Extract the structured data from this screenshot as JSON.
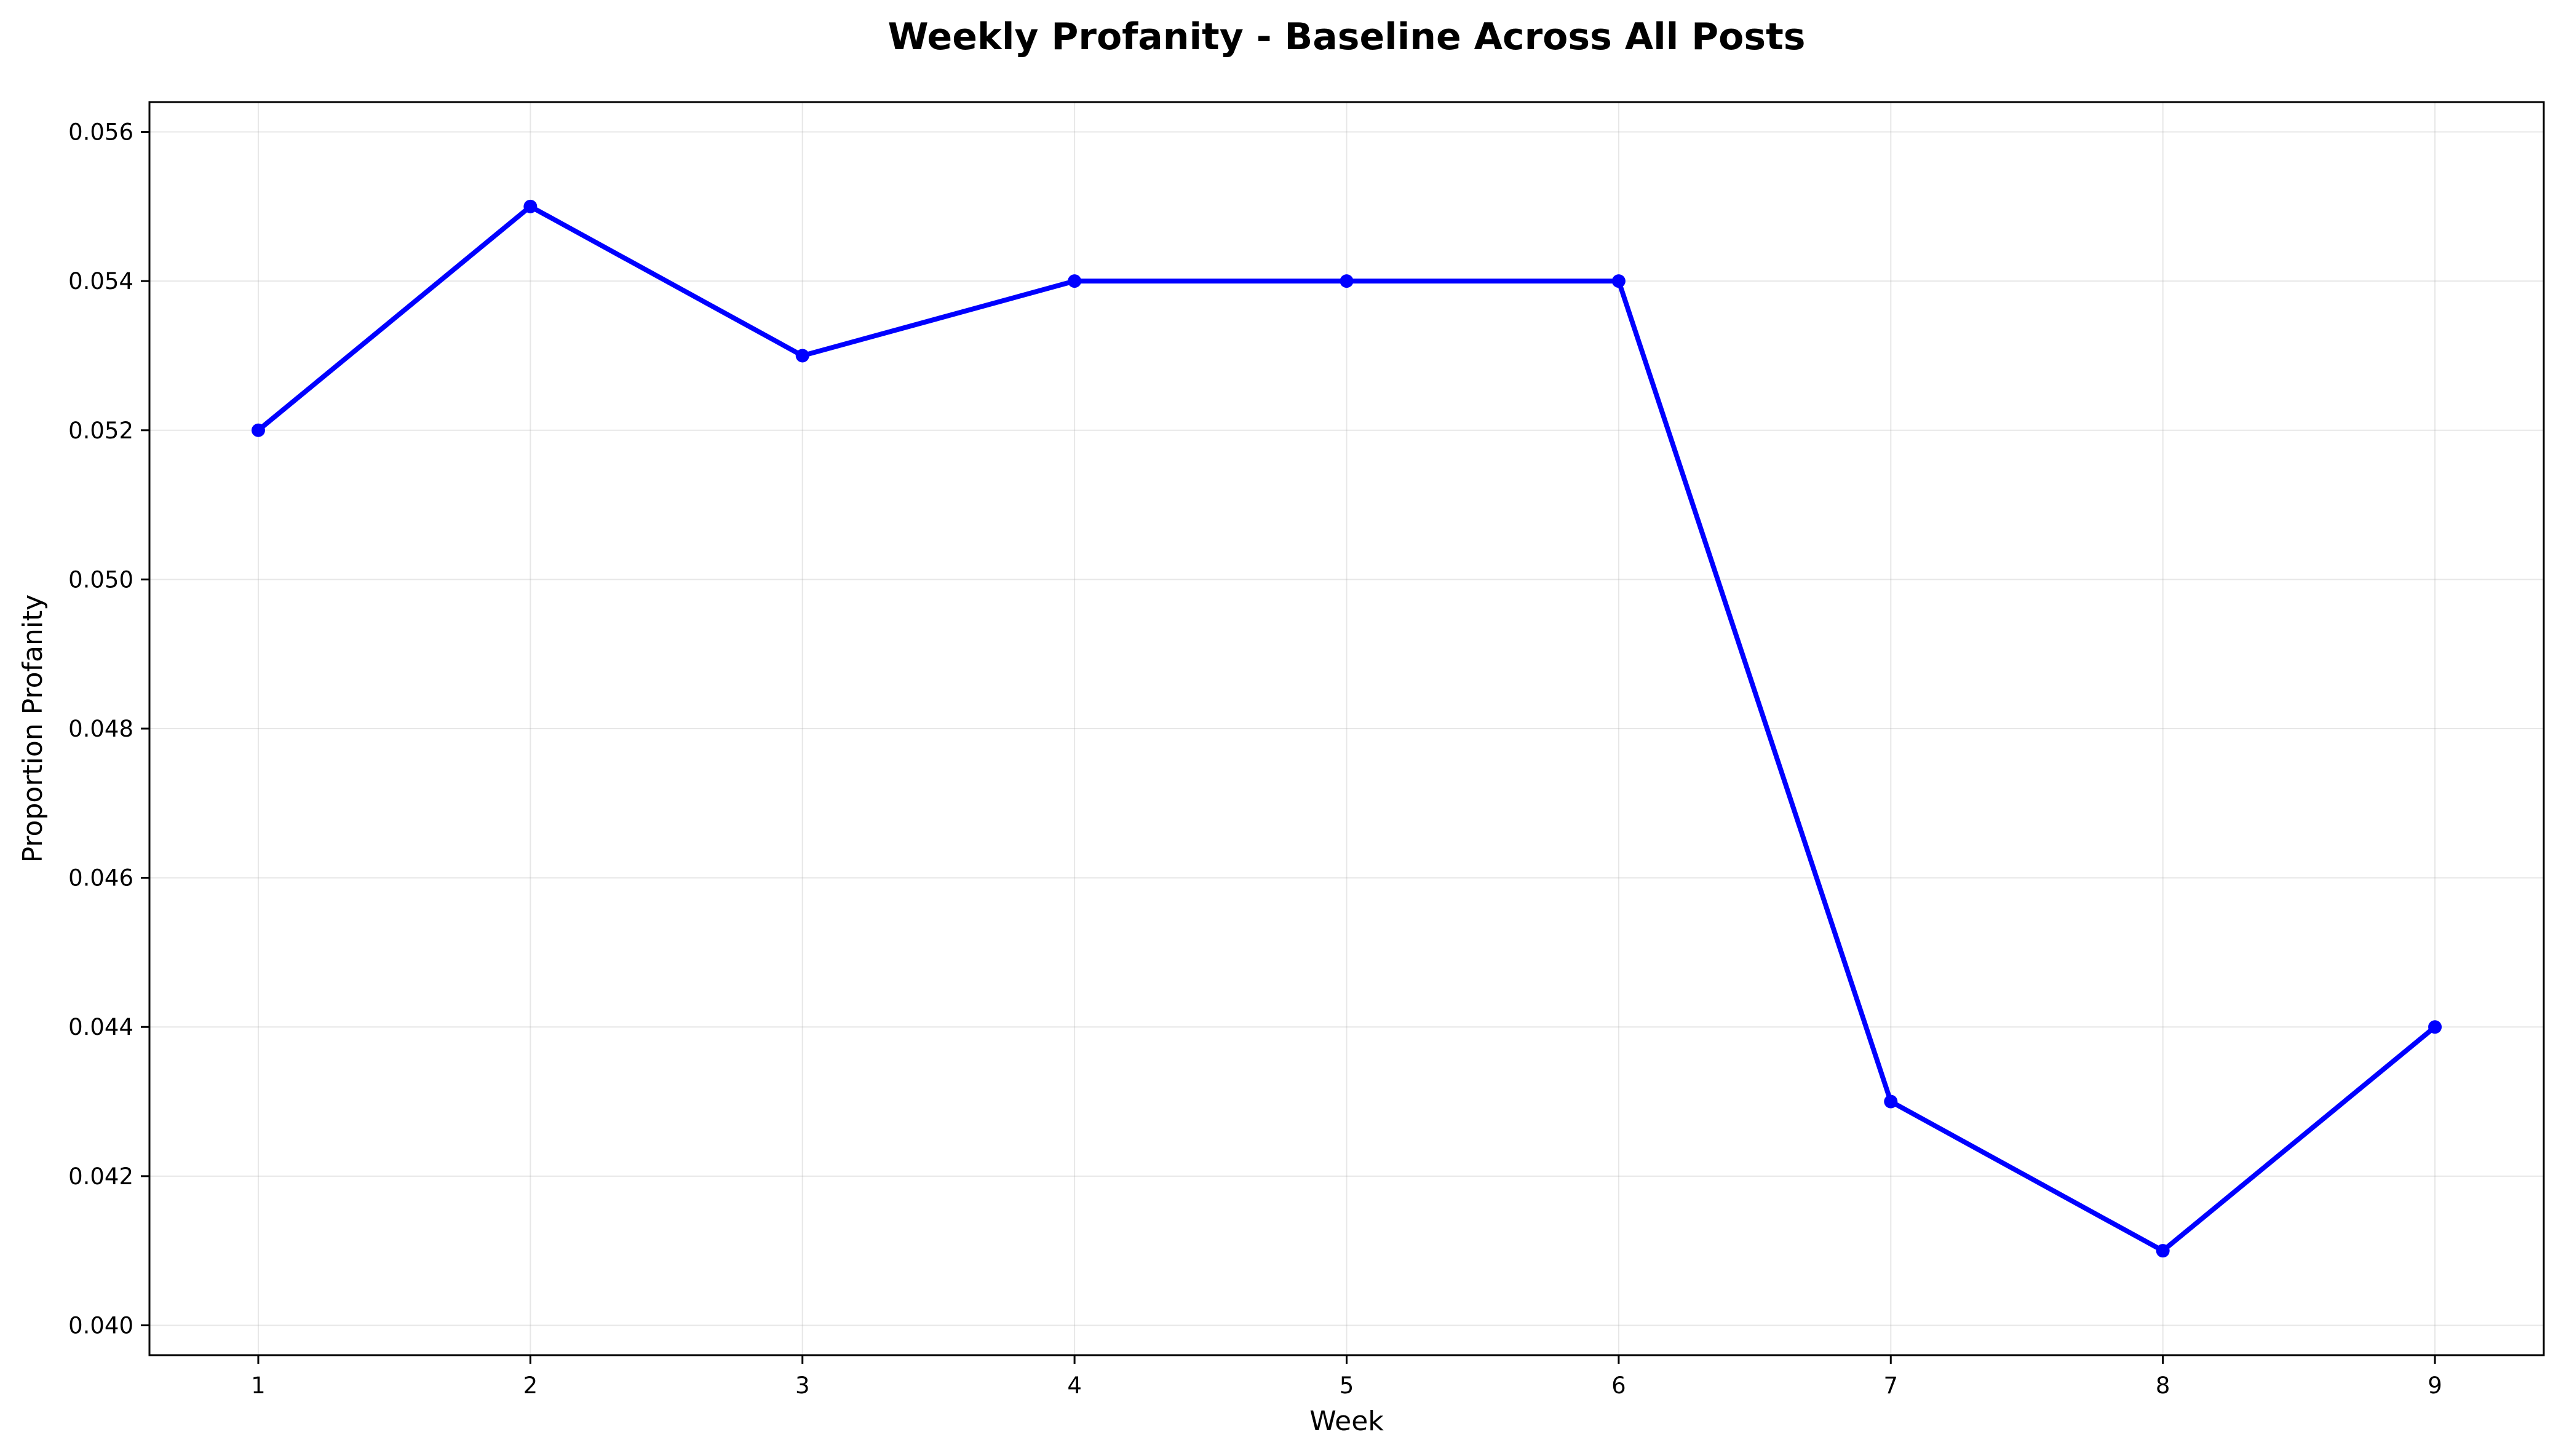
{
  "chart_data": {
    "type": "line",
    "title": "Weekly Profanity - Baseline Across All Posts",
    "xlabel": "Week",
    "ylabel": "Proportion Profanity",
    "x": [
      1,
      2,
      3,
      4,
      5,
      6,
      7,
      8,
      9
    ],
    "x_tick_labels": [
      "1",
      "2",
      "3",
      "4",
      "5",
      "6",
      "7",
      "8",
      "9"
    ],
    "y_ticks": [
      0.04,
      0.042,
      0.044,
      0.046,
      0.048,
      0.05,
      0.052,
      0.054,
      0.056
    ],
    "y_tick_labels": [
      "0.040",
      "0.042",
      "0.044",
      "0.046",
      "0.048",
      "0.050",
      "0.052",
      "0.054",
      "0.056"
    ],
    "xlim": [
      0.6,
      9.4
    ],
    "ylim": [
      0.0396,
      0.0564
    ],
    "grid": true,
    "series": [
      {
        "color": "#0000ff",
        "marker": "circle",
        "values": [
          0.052,
          0.055,
          0.053,
          0.054,
          0.054,
          0.054,
          0.043,
          0.041,
          0.044
        ]
      }
    ]
  }
}
